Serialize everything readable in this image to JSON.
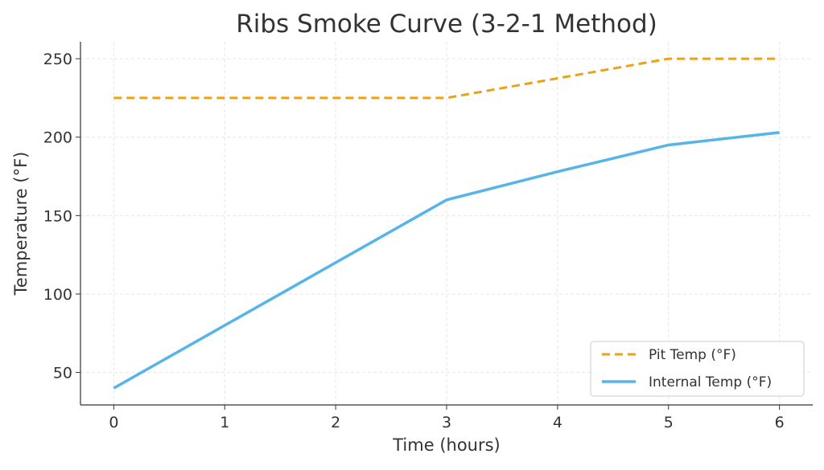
{
  "chart_data": {
    "type": "line",
    "title": "Ribs Smoke Curve (3-2-1 Method)",
    "xlabel": "Time (hours)",
    "ylabel": "Temperature (°F)",
    "x": [
      0,
      1,
      2,
      3,
      4,
      5,
      6
    ],
    "xticks": [
      "0",
      "1",
      "2",
      "3",
      "4",
      "5",
      "6"
    ],
    "yticks": [
      50,
      100,
      150,
      200,
      250
    ],
    "xlim": [
      -0.3,
      6.3
    ],
    "ylim": [
      29.3,
      260.8
    ],
    "grid": true,
    "legend": "bottom-right",
    "series": [
      {
        "name": "Pit Temp (°F)",
        "values": [
          225,
          225,
          225,
          225,
          237.5,
          250,
          250
        ],
        "color": "#E8A317",
        "style": "dashed"
      },
      {
        "name": "Internal Temp (°F)",
        "values": [
          40,
          80,
          120,
          160,
          178,
          195,
          203
        ],
        "color": "#56B4E9",
        "style": "solid"
      }
    ]
  }
}
